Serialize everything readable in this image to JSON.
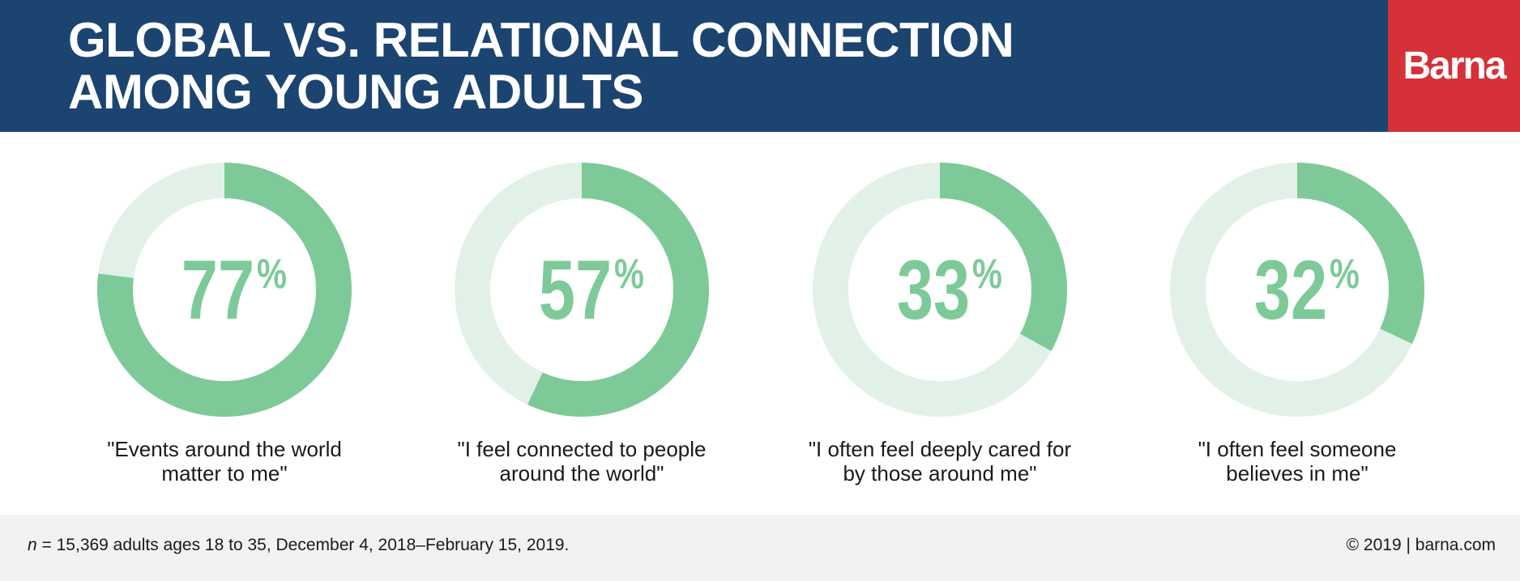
{
  "title": {
    "line1": "GLOBAL VS. RELATIONAL CONNECTION",
    "line2": "AMONG YOUNG ADULTS"
  },
  "logo": {
    "text": "Barna"
  },
  "colors": {
    "header_bg": "#1c4471",
    "logo_bg": "#d63038",
    "ring_filled": "#7dca98",
    "ring_track": "#e2f1e7",
    "percent_text": "#7dca98",
    "footer_bg": "#f2f2f2"
  },
  "chart_data": {
    "type": "pie",
    "unit": "%",
    "categories": [
      "\"Events around the world matter to me\"",
      "\"I feel connected to people around the world\"",
      "\"I often feel deeply cared for by those around me\"",
      "\"I often feel someone believes in me\""
    ],
    "values": [
      77,
      57,
      33,
      32
    ],
    "items": [
      {
        "value": 77,
        "value_label": "77",
        "percent_sign": "%",
        "caption_lines": [
          "\"Events around the world",
          "matter to me\""
        ]
      },
      {
        "value": 57,
        "value_label": "57",
        "percent_sign": "%",
        "caption_lines": [
          "\"I feel connected to people",
          "around the world\""
        ]
      },
      {
        "value": 33,
        "value_label": "33",
        "percent_sign": "%",
        "caption_lines": [
          "\"I often feel deeply cared for",
          "by those around me\""
        ]
      },
      {
        "value": 32,
        "value_label": "32",
        "percent_sign": "%",
        "caption_lines": [
          "\"I often feel someone",
          "believes in me\""
        ]
      }
    ]
  },
  "footer": {
    "note_n": "n",
    "note_text": " = 15,369 adults ages 18 to 35, December 4, 2018–February 15, 2019.",
    "copyright": "© 2019 | barna.com"
  }
}
